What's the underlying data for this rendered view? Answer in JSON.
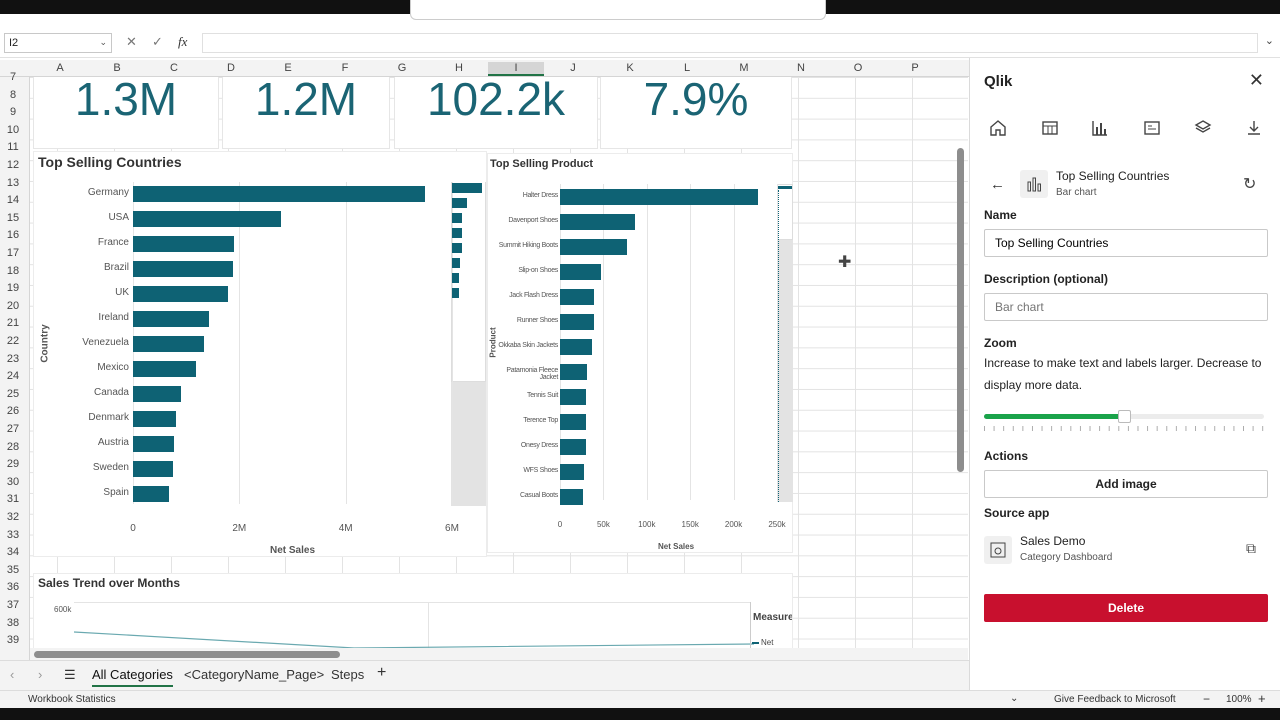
{
  "app": {
    "title": "",
    "colors": {
      "accent": "#217346",
      "bar": "#0e6274",
      "kpi_text": "#1a6474",
      "delete": "#c8102e",
      "slider": "#1aa34a"
    }
  },
  "formula_bar": {
    "name_box": "I2",
    "fx": "fx"
  },
  "columns": [
    "A",
    "B",
    "C",
    "D",
    "E",
    "F",
    "G",
    "H",
    "I",
    "J",
    "K",
    "L",
    "M",
    "N",
    "O",
    "P"
  ],
  "selected_column": "I",
  "rows": [
    "7",
    "8",
    "9",
    "10",
    "11",
    "12",
    "13",
    "14",
    "15",
    "16",
    "17",
    "18",
    "19",
    "20",
    "21",
    "22",
    "23",
    "24",
    "25",
    "26",
    "27",
    "28",
    "29",
    "30",
    "31",
    "32",
    "33",
    "34",
    "35",
    "36",
    "37",
    "38",
    "39"
  ],
  "kpis": [
    "1.3M",
    "1.2M",
    "102.2k",
    "7.9%"
  ],
  "chart_data": [
    {
      "type": "bar",
      "title": "Top Selling Countries",
      "xlabel": "Net Sales",
      "ylabel": "Country",
      "categories": [
        "Germany",
        "USA",
        "France",
        "Brazil",
        "UK",
        "Ireland",
        "Venezuela",
        "Mexico",
        "Canada",
        "Denmark",
        "Austria",
        "Sweden",
        "Spain"
      ],
      "values": [
        5500000,
        2780000,
        1900000,
        1880000,
        1780000,
        1430000,
        1340000,
        1190000,
        900000,
        800000,
        770000,
        760000,
        670000
      ],
      "xticks": [
        "0",
        "2M",
        "4M",
        "6M"
      ],
      "xlim": [
        0,
        6000000
      ]
    },
    {
      "type": "bar",
      "title": "Top Selling Product",
      "xlabel": "Net Sales",
      "ylabel": "Product",
      "categories": [
        "Halter Dress",
        "Davenport Shoes",
        "Summit Hiking Boots",
        "Slip-on Shoes",
        "Jack Flash Dress",
        "Runner Shoes",
        "Okkaba Skin Jackets",
        "Patamonia Fleece Jacket",
        "Tennis Suit",
        "Terence Top",
        "Onesy Dress",
        "WFS Shoes",
        "Casual Boots"
      ],
      "values": [
        228000,
        86000,
        77000,
        47000,
        39000,
        39000,
        37000,
        31000,
        30000,
        30000,
        30000,
        28000,
        26000
      ],
      "xticks": [
        "0",
        "50k",
        "100k",
        "150k",
        "200k",
        "250k"
      ],
      "xlim": [
        0,
        250000
      ]
    },
    {
      "type": "line",
      "title": "Sales Trend over Months",
      "ytick_top": "600k",
      "legend_title": "Measures",
      "series": [
        {
          "name": "Net Sales"
        }
      ]
    }
  ],
  "sheet_tabs": [
    "All Categories",
    "<CategoryName_Page>",
    "Steps"
  ],
  "active_tab": "All Categories",
  "status": {
    "left": "Workbook Statistics",
    "feedback": "Give Feedback to Microsoft",
    "zoom": "100%"
  },
  "panel": {
    "title": "Qlik",
    "toolbar_icons": [
      "home-icon",
      "table-icon",
      "bar-chart-icon",
      "sheet-icon",
      "layers-icon",
      "download-icon"
    ],
    "object": {
      "name": "Top Selling Countries",
      "type": "Bar chart"
    },
    "name_label": "Name",
    "name_value": "Top Selling Countries",
    "description_label": "Description (optional)",
    "description_placeholder": "Bar chart",
    "zoom_label": "Zoom",
    "zoom_help": "Increase to make text and labels larger. Decrease to display more data.",
    "zoom_level": 0.5,
    "actions_label": "Actions",
    "add_image": "Add image",
    "source_label": "Source app",
    "source_app": "Sales Demo",
    "source_sheet": "Category Dashboard",
    "delete": "Delete"
  }
}
